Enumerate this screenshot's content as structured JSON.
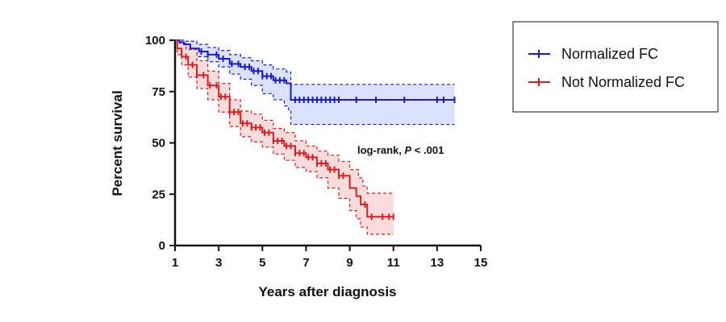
{
  "chart_data": {
    "type": "line",
    "xlabel": "Years after diagnosis",
    "ylabel": "Percent survival",
    "xlim": [
      1,
      15
    ],
    "ylim": [
      0,
      100
    ],
    "x_ticks": [
      "1",
      "3",
      "5",
      "7",
      "9",
      "11",
      "13",
      "15"
    ],
    "y_ticks": [
      "0",
      "25",
      "50",
      "75",
      "100"
    ],
    "annotation": {
      "prefix": "log-rank, ",
      "p": "P",
      "suffix": " < .001"
    },
    "legend_position": "top-right",
    "series": [
      {
        "name": "Normalized FC",
        "color": "#1a1acc",
        "fill": "#dbe2fb",
        "survival": [
          [
            1,
            100
          ],
          [
            1.2,
            99
          ],
          [
            1.4,
            98
          ],
          [
            1.7,
            96
          ],
          [
            2.1,
            94.5
          ],
          [
            2.5,
            93
          ],
          [
            3,
            91
          ],
          [
            3.5,
            88.5
          ],
          [
            4,
            87
          ],
          [
            4.5,
            85
          ],
          [
            5,
            82.5
          ],
          [
            5.5,
            80.5
          ],
          [
            6.1,
            79
          ],
          [
            6.3,
            71
          ],
          [
            13.8,
            71
          ]
        ],
        "upper": [
          [
            1,
            100
          ],
          [
            1.4,
            99.5
          ],
          [
            2,
            98
          ],
          [
            2.5,
            96.5
          ],
          [
            3,
            95
          ],
          [
            3.5,
            93
          ],
          [
            4,
            91.5
          ],
          [
            4.5,
            90
          ],
          [
            5,
            88
          ],
          [
            5.5,
            86
          ],
          [
            6.1,
            84.5
          ],
          [
            6.3,
            78.5
          ],
          [
            13.8,
            78.5
          ]
        ],
        "lower": [
          [
            1,
            100
          ],
          [
            1.2,
            97.5
          ],
          [
            1.5,
            95
          ],
          [
            2,
            92
          ],
          [
            2.5,
            89.5
          ],
          [
            3,
            87
          ],
          [
            3.5,
            83.5
          ],
          [
            4,
            81
          ],
          [
            4.5,
            78
          ],
          [
            5,
            74
          ],
          [
            5.5,
            71
          ],
          [
            6,
            68
          ],
          [
            6.2,
            66
          ],
          [
            6.3,
            59
          ],
          [
            13.8,
            59
          ]
        ],
        "censor": [
          2.2,
          2.5,
          2.9,
          3.2,
          3.6,
          3.9,
          4.2,
          4.4,
          4.6,
          4.8,
          5.0,
          5.2,
          5.4,
          5.6,
          5.8,
          6.0,
          6.5,
          6.7,
          6.9,
          7.1,
          7.3,
          7.5,
          7.7,
          7.9,
          8.1,
          8.3,
          8.5,
          9.3,
          10.2,
          11.5,
          13.0,
          13.3,
          13.8
        ]
      },
      {
        "name": "Not Normalized FC",
        "color": "#d42020",
        "fill": "#fbdcdc",
        "survival": [
          [
            1,
            100
          ],
          [
            1.1,
            96
          ],
          [
            1.3,
            92
          ],
          [
            1.6,
            88
          ],
          [
            2,
            83
          ],
          [
            2.5,
            78
          ],
          [
            3,
            72.5
          ],
          [
            3.5,
            65
          ],
          [
            4,
            59.5
          ],
          [
            4.5,
            57.5
          ],
          [
            5,
            55
          ],
          [
            5.5,
            51
          ],
          [
            6,
            48.5
          ],
          [
            6.5,
            45
          ],
          [
            7,
            43
          ],
          [
            7.5,
            40
          ],
          [
            8,
            37
          ],
          [
            8.5,
            34
          ],
          [
            9,
            28
          ],
          [
            9.3,
            24
          ],
          [
            9.5,
            20
          ],
          [
            9.8,
            14
          ],
          [
            11,
            14
          ]
        ],
        "upper": [
          [
            1,
            100
          ],
          [
            1.2,
            98.5
          ],
          [
            1.5,
            95.5
          ],
          [
            2,
            90
          ],
          [
            2.5,
            85
          ],
          [
            3,
            79
          ],
          [
            3.5,
            71
          ],
          [
            4,
            65.5
          ],
          [
            4.5,
            64
          ],
          [
            5,
            61
          ],
          [
            5.5,
            57
          ],
          [
            6,
            55
          ],
          [
            6.5,
            51
          ],
          [
            7,
            48.5
          ],
          [
            7.5,
            46
          ],
          [
            8,
            44
          ],
          [
            8.5,
            41
          ],
          [
            9,
            37
          ],
          [
            9.4,
            33
          ],
          [
            9.6,
            29
          ],
          [
            9.8,
            25.5
          ],
          [
            11,
            25.5
          ]
        ],
        "lower": [
          [
            1,
            100
          ],
          [
            1.1,
            93
          ],
          [
            1.3,
            88
          ],
          [
            1.6,
            82
          ],
          [
            2,
            76.5
          ],
          [
            2.5,
            71
          ],
          [
            3,
            65
          ],
          [
            3.5,
            58
          ],
          [
            4,
            53
          ],
          [
            4.5,
            50.5
          ],
          [
            5,
            48
          ],
          [
            5.5,
            44.5
          ],
          [
            6,
            41.5
          ],
          [
            6.5,
            38
          ],
          [
            7,
            36
          ],
          [
            7.5,
            33
          ],
          [
            8,
            28
          ],
          [
            8.5,
            23
          ],
          [
            9,
            17
          ],
          [
            9.3,
            13
          ],
          [
            9.5,
            9
          ],
          [
            9.8,
            5.5
          ],
          [
            11,
            5.5
          ]
        ],
        "censor": [
          1.5,
          1.8,
          2.0,
          2.3,
          2.6,
          2.9,
          3.1,
          3.3,
          3.5,
          3.7,
          3.9,
          4.1,
          4.3,
          4.5,
          4.7,
          4.9,
          5.1,
          5.3,
          5.5,
          5.7,
          5.9,
          6.1,
          6.3,
          6.5,
          6.7,
          6.9,
          7.1,
          7.3,
          7.5,
          7.7,
          7.9,
          8.1,
          8.3,
          8.5,
          8.7,
          9.7,
          10.0,
          10.5,
          10.8,
          11.0
        ]
      }
    ]
  }
}
